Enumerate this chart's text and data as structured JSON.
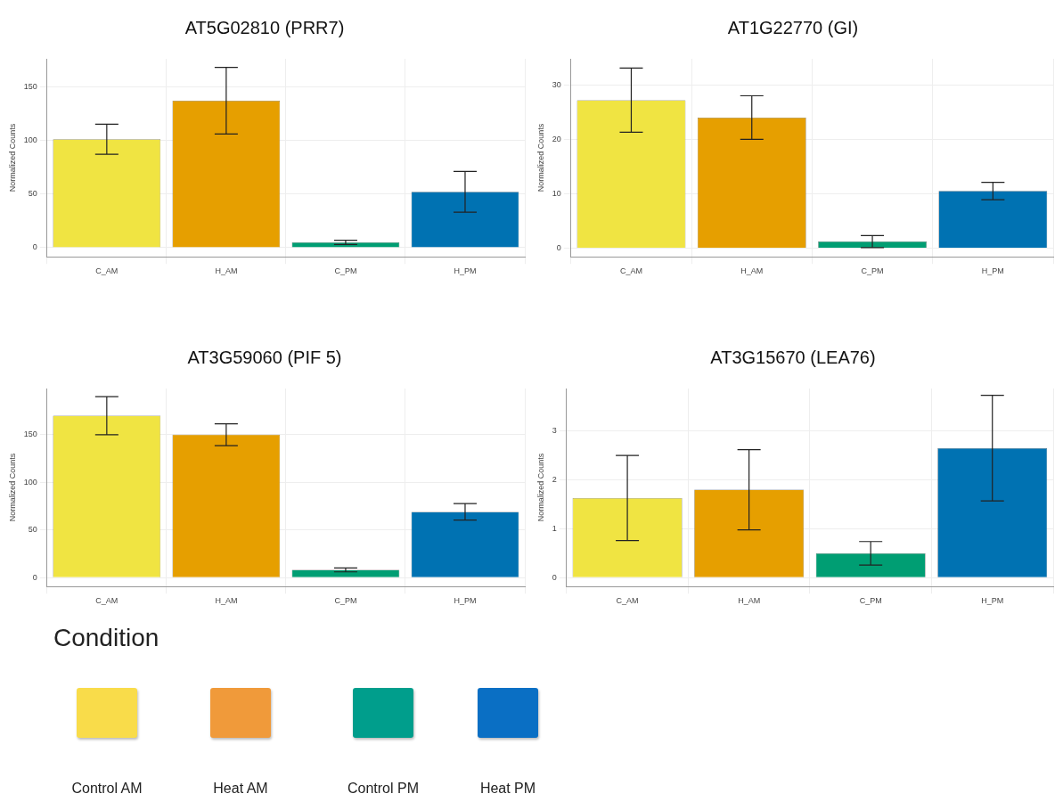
{
  "chart_data": [
    {
      "type": "bar",
      "title": "AT5G02810 (PRR7)",
      "ylabel": "Normalized Counts",
      "categories": [
        "C_AM",
        "H_AM",
        "C_PM",
        "H_PM"
      ],
      "values": [
        101,
        137,
        5,
        52
      ],
      "errors": [
        14,
        31,
        2,
        19
      ],
      "colors": [
        "#f0e442",
        "#e69f00",
        "#009e73",
        "#0072b2"
      ],
      "ylim": [
        -8.5,
        176
      ],
      "yticks": [
        0,
        50,
        100,
        150
      ],
      "grid": true
    },
    {
      "type": "bar",
      "title": "AT1G22770 (GI)",
      "ylabel": "Normalized Counts",
      "categories": [
        "C_AM",
        "H_AM",
        "C_PM",
        "H_PM"
      ],
      "values": [
        27.2,
        24,
        1.2,
        10.5
      ],
      "errors": [
        5.9,
        4,
        1.1,
        1.6
      ],
      "colors": [
        "#f0e442",
        "#e69f00",
        "#009e73",
        "#0072b2"
      ],
      "ylim": [
        -1.6,
        34.8
      ],
      "yticks": [
        0,
        10,
        20,
        30
      ],
      "grid": true
    },
    {
      "type": "bar",
      "title": "AT3G59060 (PIF 5)",
      "ylabel": "Normalized Counts",
      "categories": [
        "C_AM",
        "H_AM",
        "C_PM",
        "H_PM"
      ],
      "values": [
        170,
        150,
        8,
        69
      ],
      "errors": [
        20,
        11.5,
        2,
        8.7
      ],
      "colors": [
        "#f0e442",
        "#e69f00",
        "#009e73",
        "#0072b2"
      ],
      "ylim": [
        -9.4,
        198.5
      ],
      "yticks": [
        0,
        50,
        100,
        150
      ],
      "grid": true
    },
    {
      "type": "bar",
      "title": "AT3G15670 (LEA76)",
      "ylabel": "Normalized Counts",
      "categories": [
        "C_AM",
        "H_AM",
        "C_PM",
        "H_PM"
      ],
      "values": [
        1.63,
        1.8,
        0.5,
        2.65
      ],
      "errors": [
        0.87,
        0.82,
        0.24,
        1.08
      ],
      "colors": [
        "#f0e442",
        "#e69f00",
        "#009e73",
        "#0072b2"
      ],
      "ylim": [
        -0.18,
        3.87
      ],
      "yticks": [
        0,
        1,
        2,
        3
      ],
      "grid": true
    },
    {
      "type": "other",
      "legend_title": "Condition",
      "categories": [
        "Control AM",
        "Heat AM",
        "Control PM",
        "Heat PM"
      ],
      "colors": [
        "#f9dc4a",
        "#f09a3a",
        "#009e8c",
        "#0a6fc4"
      ]
    }
  ]
}
